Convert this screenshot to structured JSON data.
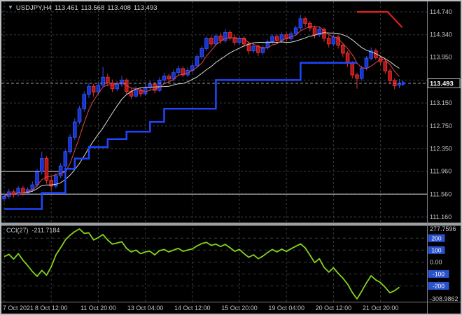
{
  "header": {
    "one_click_icon": "▼",
    "symbol": "USDJPY,H4",
    "open": "113.461",
    "high": "113.568",
    "low": "113.408",
    "close": "113.493"
  },
  "indicator": {
    "name": "CCI(27)",
    "value": "-211.7184"
  },
  "colors": {
    "background": "#000000",
    "grid": "#3a3a3a",
    "axis_text": "#c4c4c4",
    "frame_line": "#7a7f84",
    "splitter": "#9aa0a4",
    "bull": "#3350ee",
    "bull_fill": "#1433cc",
    "bear": "#e23232",
    "bear_fill": "#b31414",
    "ma_fast": "#e04848",
    "ma_slow": "#d9d9d9",
    "support": "#1f46ff",
    "resistance": "#f02020",
    "cci": "#84d41c",
    "level_chip": "#2a52cc",
    "hline": "#f2f2f2",
    "price_marker_bg": "#000000",
    "price_marker_border": "#dcdcdc",
    "current_price_dash": "#9a9a9a"
  },
  "chart_data": [
    {
      "type": "candlestick",
      "title": "USDJPY H4",
      "ylim": [
        111.16,
        114.74
      ],
      "y_gridlines": [
        114.74,
        114.34,
        113.95,
        113.55,
        113.15,
        112.75,
        112.35,
        111.96,
        111.56,
        111.16
      ],
      "y_axis_labels": [
        "114.740",
        "114.340",
        "113.950",
        "113.150",
        "112.750",
        "112.350",
        "111.960",
        "111.560",
        "111.160"
      ],
      "current_price": 113.493,
      "current_price_label": "113.493",
      "x_label_positions": [
        0,
        10,
        20,
        30,
        40,
        50,
        60,
        70,
        80
      ],
      "x_labels": [
        "7 Oct 2021",
        "8 Oct 12:00",
        "11 Oct 20:00",
        "13 Oct 04:00",
        "14 Oct 12:00",
        "15 Oct 20:00",
        "19 Oct 04:00",
        "20 Oct 12:00",
        "21 Oct 20:00"
      ],
      "ma_fast_period": 5,
      "ma_slow_period": 13,
      "candles": [
        [
          111.48,
          111.58,
          111.42,
          111.52
        ],
        [
          111.52,
          111.65,
          111.48,
          111.6
        ],
        [
          111.6,
          111.64,
          111.5,
          111.55
        ],
        [
          111.55,
          111.7,
          111.52,
          111.66
        ],
        [
          111.66,
          111.7,
          111.53,
          111.58
        ],
        [
          111.58,
          111.68,
          111.54,
          111.64
        ],
        [
          111.64,
          111.78,
          111.6,
          111.72
        ],
        [
          111.72,
          112.0,
          111.68,
          111.95
        ],
        [
          111.95,
          112.3,
          111.9,
          112.18
        ],
        [
          112.18,
          112.22,
          111.74,
          111.8
        ],
        [
          111.8,
          111.88,
          111.62,
          111.7
        ],
        [
          111.7,
          111.92,
          111.66,
          111.88
        ],
        [
          111.88,
          112.1,
          111.84,
          112.05
        ],
        [
          112.05,
          112.34,
          112.0,
          112.3
        ],
        [
          112.3,
          112.6,
          112.26,
          112.55
        ],
        [
          112.55,
          112.88,
          112.5,
          112.82
        ],
        [
          112.82,
          113.1,
          112.78,
          113.05
        ],
        [
          113.05,
          113.35,
          113.0,
          113.3
        ],
        [
          113.3,
          113.5,
          113.24,
          113.44
        ],
        [
          113.44,
          113.48,
          113.26,
          113.34
        ],
        [
          113.34,
          113.52,
          113.3,
          113.46
        ],
        [
          113.46,
          113.78,
          113.42,
          113.6
        ],
        [
          113.6,
          113.66,
          113.44,
          113.5
        ],
        [
          113.5,
          113.56,
          113.34,
          113.4
        ],
        [
          113.4,
          113.53,
          113.36,
          113.48
        ],
        [
          113.48,
          113.62,
          113.43,
          113.55
        ],
        [
          113.55,
          113.58,
          113.3,
          113.35
        ],
        [
          113.35,
          113.42,
          113.22,
          113.27
        ],
        [
          113.27,
          113.44,
          113.24,
          113.38
        ],
        [
          113.38,
          113.42,
          113.26,
          113.31
        ],
        [
          113.31,
          113.48,
          113.28,
          113.42
        ],
        [
          113.42,
          113.54,
          113.38,
          113.48
        ],
        [
          113.48,
          113.52,
          113.32,
          113.37
        ],
        [
          113.37,
          113.6,
          113.34,
          113.55
        ],
        [
          113.55,
          113.68,
          113.5,
          113.62
        ],
        [
          113.62,
          113.66,
          113.51,
          113.57
        ],
        [
          113.57,
          113.73,
          113.53,
          113.68
        ],
        [
          113.68,
          113.8,
          113.63,
          113.75
        ],
        [
          113.75,
          113.79,
          113.6,
          113.64
        ],
        [
          113.64,
          113.77,
          113.6,
          113.72
        ],
        [
          113.72,
          113.85,
          113.68,
          113.8
        ],
        [
          113.8,
          114.0,
          113.76,
          113.96
        ],
        [
          113.96,
          114.15,
          113.92,
          114.1
        ],
        [
          114.1,
          114.32,
          114.06,
          114.28
        ],
        [
          114.28,
          114.33,
          114.12,
          114.18
        ],
        [
          114.18,
          114.36,
          114.14,
          114.32
        ],
        [
          114.32,
          114.38,
          114.18,
          114.24
        ],
        [
          114.24,
          114.44,
          114.2,
          114.38
        ],
        [
          114.38,
          114.42,
          114.24,
          114.29
        ],
        [
          114.29,
          114.34,
          114.15,
          114.21
        ],
        [
          114.21,
          114.32,
          114.16,
          114.28
        ],
        [
          114.28,
          114.32,
          114.12,
          114.18
        ],
        [
          114.18,
          114.22,
          114.0,
          114.06
        ],
        [
          114.06,
          114.18,
          114.02,
          114.14
        ],
        [
          114.14,
          114.17,
          113.97,
          114.03
        ],
        [
          114.03,
          114.16,
          113.99,
          114.12
        ],
        [
          114.12,
          114.26,
          114.08,
          114.22
        ],
        [
          114.22,
          114.35,
          114.18,
          114.31
        ],
        [
          114.31,
          114.35,
          114.19,
          114.24
        ],
        [
          114.24,
          114.38,
          114.2,
          114.34
        ],
        [
          114.34,
          114.38,
          114.22,
          114.27
        ],
        [
          114.27,
          114.4,
          114.23,
          114.36
        ],
        [
          114.36,
          114.5,
          114.32,
          114.46
        ],
        [
          114.46,
          114.69,
          114.42,
          114.62
        ],
        [
          114.62,
          114.66,
          114.48,
          114.54
        ],
        [
          114.54,
          114.58,
          114.4,
          114.46
        ],
        [
          114.46,
          114.5,
          114.28,
          114.34
        ],
        [
          114.34,
          114.48,
          114.3,
          114.44
        ],
        [
          114.44,
          114.47,
          114.22,
          114.28
        ],
        [
          114.28,
          114.33,
          114.12,
          114.18
        ],
        [
          114.18,
          114.34,
          114.14,
          114.3
        ],
        [
          114.3,
          114.33,
          114.1,
          114.16
        ],
        [
          114.16,
          114.2,
          113.96,
          114.02
        ],
        [
          114.02,
          114.06,
          113.78,
          113.84
        ],
        [
          113.84,
          113.88,
          113.58,
          113.64
        ],
        [
          113.64,
          113.68,
          113.4,
          113.58
        ],
        [
          113.58,
          113.8,
          113.54,
          113.76
        ],
        [
          113.76,
          113.97,
          113.72,
          113.93
        ],
        [
          113.93,
          114.12,
          113.89,
          114.06
        ],
        [
          114.06,
          114.1,
          113.9,
          113.94
        ],
        [
          113.94,
          113.98,
          113.82,
          113.87
        ],
        [
          113.87,
          113.91,
          113.66,
          113.71
        ],
        [
          113.71,
          113.75,
          113.48,
          113.54
        ],
        [
          113.54,
          113.58,
          113.39,
          113.45
        ],
        [
          113.461,
          113.568,
          113.408,
          113.493
        ]
      ],
      "support_steps": [
        [
          0,
          8,
          111.3
        ],
        [
          8,
          13,
          111.58
        ],
        [
          13,
          15,
          112.0
        ],
        [
          15,
          18,
          112.18
        ],
        [
          18,
          22,
          112.38
        ],
        [
          22,
          26,
          112.52
        ],
        [
          26,
          31,
          112.65
        ],
        [
          31,
          34,
          112.82
        ],
        [
          34,
          45,
          113.05
        ],
        [
          45,
          63,
          113.55
        ],
        [
          63,
          75,
          113.85
        ]
      ],
      "resistance_line": [
        [
          75,
          114.74
        ],
        [
          81.5,
          114.74
        ],
        [
          84.6,
          114.47
        ]
      ],
      "hlines": [
        {
          "price": 111.96,
          "from": 0,
          "to": 13.3
        },
        {
          "price": 111.56,
          "from": 0,
          "to": 90
        }
      ]
    },
    {
      "type": "line",
      "name": "CCI",
      "period": 27,
      "last_value": -211.7184,
      "ylim": [
        -308.9862,
        277.7596
      ],
      "levels": [
        200,
        100,
        0,
        -100,
        -200
      ],
      "level_labels": [
        {
          "value": 200,
          "text": "200",
          "chip": true
        },
        {
          "value": 100,
          "text": "100",
          "chip": true
        },
        {
          "value": 0,
          "text": "0.00",
          "chip": false
        },
        {
          "value": -100,
          "text": "-100",
          "chip": true
        },
        {
          "value": -200,
          "text": "-200",
          "chip": true
        }
      ],
      "max_label": "277.7596",
      "min_label": "-308.9862",
      "values": [
        45,
        65,
        25,
        70,
        15,
        -30,
        -80,
        -120,
        -70,
        -110,
        -40,
        60,
        120,
        185,
        225,
        255,
        277.7596,
        240,
        245,
        185,
        205,
        230,
        185,
        150,
        160,
        170,
        115,
        85,
        100,
        70,
        85,
        90,
        60,
        95,
        105,
        85,
        100,
        115,
        90,
        100,
        110,
        135,
        155,
        165,
        140,
        150,
        130,
        148,
        120,
        90,
        105,
        70,
        40,
        60,
        28,
        50,
        80,
        105,
        85,
        108,
        88,
        112,
        132,
        152,
        118,
        58,
        -5,
        28,
        -45,
        -85,
        -48,
        -95,
        -135,
        -185,
        -255,
        -308.9862,
        -245,
        -175,
        -115,
        -150,
        -172,
        -212,
        -258,
        -240,
        -211.7184
      ]
    }
  ]
}
